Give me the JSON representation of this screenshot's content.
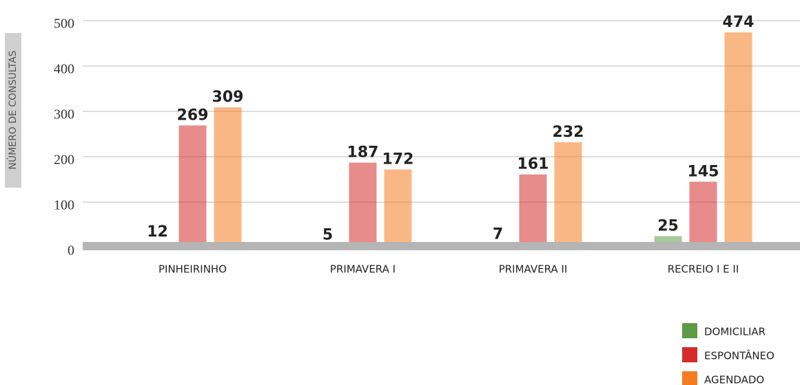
{
  "chart_data": {
    "type": "bar",
    "y_label": "NÚMERO DE CONSULTAS",
    "categories": [
      "PINHEIRINHO",
      "PRIMAVERA I",
      "PRIMAVERA II",
      "RECREIO I E II"
    ],
    "series": [
      {
        "name": "DOMICILIAR",
        "color": "#5e9a45",
        "values": [
          12,
          5,
          7,
          25
        ]
      },
      {
        "name": "ESPONTÂNEO",
        "color": "#d42b2b",
        "values": [
          269,
          187,
          161,
          145
        ]
      },
      {
        "name": "AGENDADO",
        "color": "#f47b20",
        "values": [
          309,
          172,
          232,
          474
        ]
      }
    ],
    "ylim": [
      0,
      500
    ],
    "yticks": [
      0,
      100,
      200,
      300,
      400,
      500
    ],
    "grid": true,
    "legend": "bottom-right"
  }
}
